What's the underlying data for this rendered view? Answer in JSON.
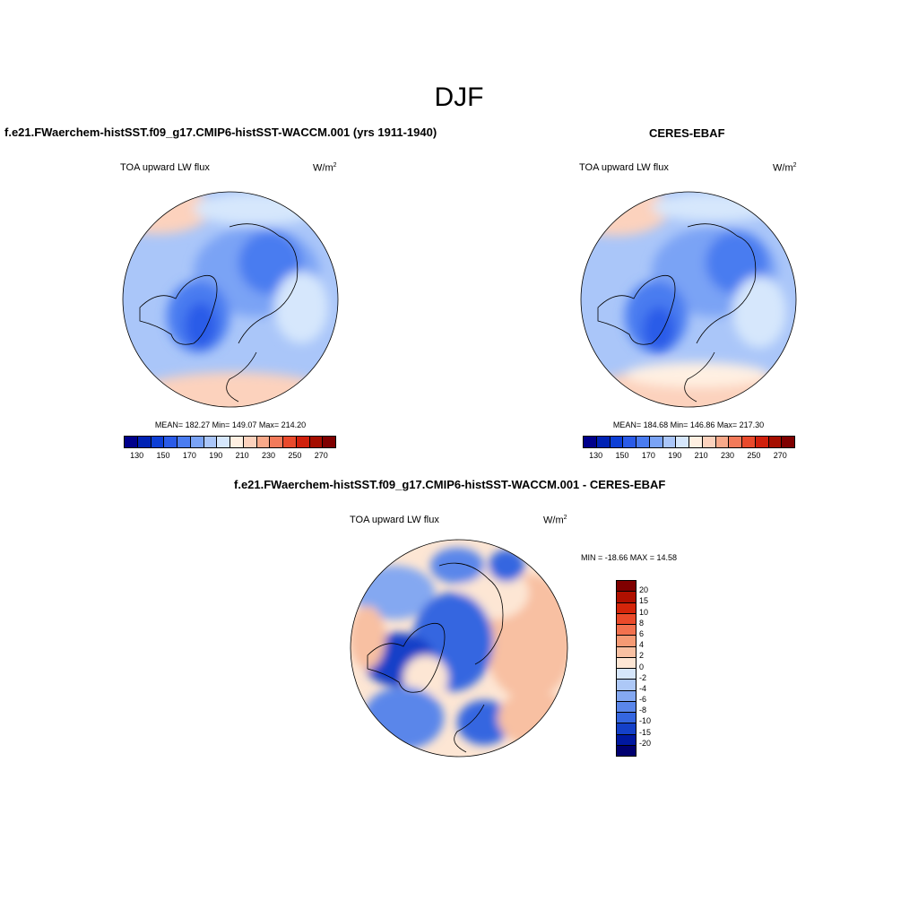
{
  "season": "DJF",
  "panels": {
    "model": {
      "title": "f.e21.FWaerchem-histSST.f09_g17.CMIP6-histSST-WACCM.001 (yrs 1911-1940)",
      "variable": "TOA upward LW flux",
      "units": "W/m",
      "units_exp": "2",
      "stats": "MEAN= 182.27  Min= 149.07  Max= 214.20"
    },
    "obs": {
      "title": "CERES-EBAF",
      "variable": "TOA upward LW flux",
      "units": "W/m",
      "units_exp": "2",
      "stats": "MEAN= 184.68  Min= 146.86  Max= 217.30"
    },
    "diff": {
      "title": "f.e21.FWaerchem-histSST.f09_g17.CMIP6-histSST-WACCM.001 - CERES-EBAF",
      "variable": "TOA upward LW flux",
      "units": "W/m",
      "units_exp": "2",
      "stats": "MIN = -18.66 MAX =  14.58"
    }
  },
  "colorbar_abs": {
    "labels": [
      "130",
      "150",
      "170",
      "190",
      "210",
      "230",
      "250",
      "270"
    ],
    "colors": [
      "#00008b",
      "#0022b4",
      "#0d3fd6",
      "#2a5be8",
      "#4a7cf0",
      "#7aa3f5",
      "#aac6f9",
      "#d6e7fc",
      "#fff0e2",
      "#fcd2bd",
      "#f8a98a",
      "#f27a5a",
      "#e94a2c",
      "#d0200c",
      "#a50e00",
      "#7f0000"
    ]
  },
  "colorbar_diff": {
    "labels": [
      "20",
      "15",
      "10",
      "8",
      "6",
      "4",
      "2",
      "0",
      "-2",
      "-4",
      "-6",
      "-8",
      "-10",
      "-15",
      "-20"
    ],
    "colors": [
      "#7f0000",
      "#b01000",
      "#d4250a",
      "#ea4a2a",
      "#f2714e",
      "#f59a74",
      "#f8c0a2",
      "#fde6d4",
      "#d6e6fb",
      "#adc8f7",
      "#84a8f1",
      "#5a86ea",
      "#3566e0",
      "#1440c8",
      "#0018a0",
      "#000070"
    ]
  }
}
